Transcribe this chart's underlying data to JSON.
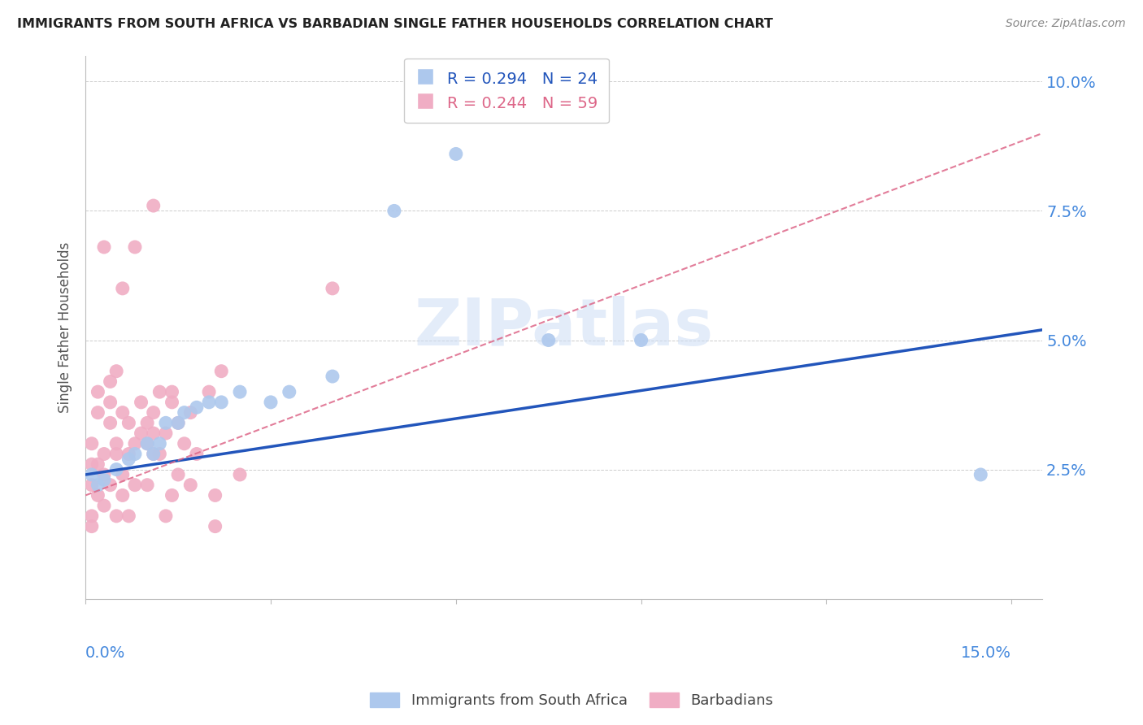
{
  "title": "IMMIGRANTS FROM SOUTH AFRICA VS BARBADIAN SINGLE FATHER HOUSEHOLDS CORRELATION CHART",
  "source": "Source: ZipAtlas.com",
  "ylabel": "Single Father Households",
  "ylabel_ticks": [
    "2.5%",
    "5.0%",
    "7.5%",
    "10.0%"
  ],
  "watermark": "ZIPatlas",
  "legend_blue_r": "R = 0.294",
  "legend_blue_n": "N = 24",
  "legend_pink_r": "R = 0.244",
  "legend_pink_n": "N = 59",
  "legend_blue_label": "Immigrants from South Africa",
  "legend_pink_label": "Barbadians",
  "blue_scatter_color": "#adc8ed",
  "pink_scatter_color": "#f0adc4",
  "blue_line_color": "#2255bb",
  "pink_line_color": "#dd6688",
  "blue_points": [
    [
      0.001,
      0.024
    ],
    [
      0.002,
      0.022
    ],
    [
      0.003,
      0.023
    ],
    [
      0.005,
      0.025
    ],
    [
      0.007,
      0.027
    ],
    [
      0.008,
      0.028
    ],
    [
      0.01,
      0.03
    ],
    [
      0.011,
      0.028
    ],
    [
      0.012,
      0.03
    ],
    [
      0.013,
      0.034
    ],
    [
      0.015,
      0.034
    ],
    [
      0.016,
      0.036
    ],
    [
      0.018,
      0.037
    ],
    [
      0.02,
      0.038
    ],
    [
      0.022,
      0.038
    ],
    [
      0.025,
      0.04
    ],
    [
      0.03,
      0.038
    ],
    [
      0.033,
      0.04
    ],
    [
      0.04,
      0.043
    ],
    [
      0.05,
      0.075
    ],
    [
      0.06,
      0.086
    ],
    [
      0.075,
      0.05
    ],
    [
      0.09,
      0.05
    ],
    [
      0.145,
      0.024
    ]
  ],
  "pink_points": [
    [
      0.001,
      0.026
    ],
    [
      0.001,
      0.022
    ],
    [
      0.001,
      0.03
    ],
    [
      0.001,
      0.016
    ],
    [
      0.001,
      0.014
    ],
    [
      0.002,
      0.04
    ],
    [
      0.002,
      0.036
    ],
    [
      0.002,
      0.026
    ],
    [
      0.002,
      0.02
    ],
    [
      0.003,
      0.018
    ],
    [
      0.003,
      0.024
    ],
    [
      0.003,
      0.028
    ],
    [
      0.003,
      0.068
    ],
    [
      0.004,
      0.022
    ],
    [
      0.004,
      0.038
    ],
    [
      0.004,
      0.034
    ],
    [
      0.004,
      0.042
    ],
    [
      0.005,
      0.016
    ],
    [
      0.005,
      0.028
    ],
    [
      0.005,
      0.03
    ],
    [
      0.005,
      0.044
    ],
    [
      0.006,
      0.06
    ],
    [
      0.006,
      0.024
    ],
    [
      0.006,
      0.02
    ],
    [
      0.006,
      0.036
    ],
    [
      0.007,
      0.034
    ],
    [
      0.007,
      0.028
    ],
    [
      0.007,
      0.016
    ],
    [
      0.008,
      0.022
    ],
    [
      0.008,
      0.068
    ],
    [
      0.008,
      0.03
    ],
    [
      0.009,
      0.038
    ],
    [
      0.009,
      0.032
    ],
    [
      0.01,
      0.034
    ],
    [
      0.01,
      0.03
    ],
    [
      0.01,
      0.022
    ],
    [
      0.011,
      0.032
    ],
    [
      0.011,
      0.028
    ],
    [
      0.011,
      0.036
    ],
    [
      0.011,
      0.076
    ],
    [
      0.012,
      0.028
    ],
    [
      0.012,
      0.04
    ],
    [
      0.013,
      0.032
    ],
    [
      0.013,
      0.016
    ],
    [
      0.014,
      0.02
    ],
    [
      0.014,
      0.04
    ],
    [
      0.014,
      0.038
    ],
    [
      0.015,
      0.024
    ],
    [
      0.015,
      0.034
    ],
    [
      0.016,
      0.03
    ],
    [
      0.017,
      0.022
    ],
    [
      0.017,
      0.036
    ],
    [
      0.018,
      0.028
    ],
    [
      0.02,
      0.04
    ],
    [
      0.021,
      0.02
    ],
    [
      0.021,
      0.014
    ],
    [
      0.022,
      0.044
    ],
    [
      0.025,
      0.024
    ],
    [
      0.04,
      0.06
    ]
  ],
  "x_min": 0.0,
  "x_max": 0.155,
  "y_min": 0.0,
  "y_max": 0.105,
  "blue_trendline_x": [
    0.0,
    0.155
  ],
  "blue_trendline_y": [
    0.024,
    0.052
  ],
  "pink_trendline_x": [
    0.0,
    0.155
  ],
  "pink_trendline_y": [
    0.02,
    0.09
  ],
  "x_ticks": [
    0.0,
    0.03,
    0.06,
    0.09,
    0.12,
    0.15
  ],
  "y_ticks": [
    0.025,
    0.05,
    0.075,
    0.1
  ],
  "background_color": "#ffffff",
  "grid_color": "#cccccc",
  "title_color": "#222222",
  "source_color": "#888888",
  "axis_label_color": "#4488dd",
  "ylabel_color": "#555555",
  "spine_color": "#bbbbbb"
}
